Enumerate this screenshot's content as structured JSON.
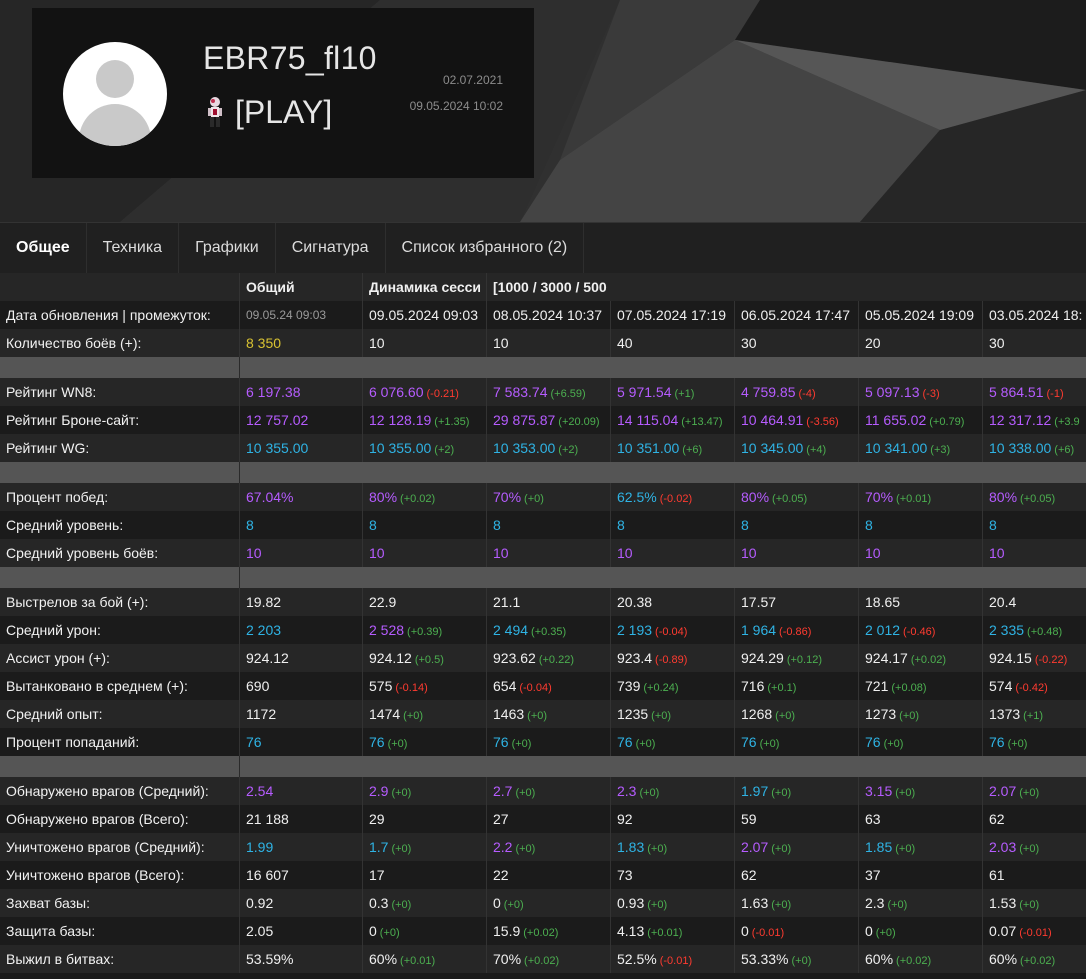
{
  "profile": {
    "username": "EBR75_fl10",
    "clan_tag": "[PLAY]",
    "registered_date": "02.07.2021",
    "last_battle": "09.05.2024 10:02"
  },
  "tabs": [
    {
      "label": "Общее",
      "active": true
    },
    {
      "label": "Техника",
      "active": false
    },
    {
      "label": "Графики",
      "active": false
    },
    {
      "label": "Сигнатура",
      "active": false
    },
    {
      "label": "Список избранного (2)",
      "active": false
    }
  ],
  "table": {
    "header": {
      "overall": "Общий",
      "dynamics": "Динамика сесси",
      "ranges": "[1000 / 3000 / 500"
    },
    "dates_label": "Дата обновления | промежуток:",
    "dates": [
      "09.05.24 09:03",
      "09.05.2024 09:03",
      "08.05.2024 10:37",
      "07.05.2024 17:19",
      "06.05.2024 17:47",
      "05.05.2024 19:09",
      "03.05.2024 18:"
    ],
    "rows": [
      {
        "label": "Количество боёв (+):",
        "cells": [
          [
            "8 350",
            "",
            "yellow"
          ],
          [
            "10",
            "",
            "white"
          ],
          [
            "10",
            "",
            "white"
          ],
          [
            "40",
            "",
            "white"
          ],
          [
            "30",
            "",
            "white"
          ],
          [
            "20",
            "",
            "white"
          ],
          [
            "30",
            "",
            "white"
          ]
        ]
      },
      {
        "sep": true
      },
      {
        "label": "Рейтинг WN8:",
        "cells": [
          [
            "6 197.38",
            "",
            "purple"
          ],
          [
            "6 076.60",
            "(-0.21)",
            "purple"
          ],
          [
            "7 583.74",
            "(+6.59)",
            "purple"
          ],
          [
            "5 971.54",
            "(+1)",
            "purple"
          ],
          [
            "4 759.85",
            "(-4)",
            "purple"
          ],
          [
            "5 097.13",
            "(-3)",
            "purple"
          ],
          [
            "5 864.51",
            "(-1)",
            "purple"
          ]
        ]
      },
      {
        "label": "Рейтинг Броне-сайт:",
        "cells": [
          [
            "12 757.02",
            "",
            "purple"
          ],
          [
            "12 128.19",
            "(+1.35)",
            "purple"
          ],
          [
            "29 875.87",
            "(+20.09)",
            "purple"
          ],
          [
            "14 115.04",
            "(+13.47)",
            "purple"
          ],
          [
            "10 464.91",
            "(-3.56)",
            "purple"
          ],
          [
            "11 655.02",
            "(+0.79)",
            "purple"
          ],
          [
            "12 317.12",
            "(+3.9",
            "purple"
          ]
        ]
      },
      {
        "label": "Рейтинг WG:",
        "cells": [
          [
            "10 355.00",
            "",
            "cyan"
          ],
          [
            "10 355.00",
            "(+2)",
            "cyan"
          ],
          [
            "10 353.00",
            "(+2)",
            "cyan"
          ],
          [
            "10 351.00",
            "(+6)",
            "cyan"
          ],
          [
            "10 345.00",
            "(+4)",
            "cyan"
          ],
          [
            "10 341.00",
            "(+3)",
            "cyan"
          ],
          [
            "10 338.00",
            "(+6)",
            "cyan"
          ]
        ]
      },
      {
        "sep": true
      },
      {
        "label": "Процент побед:",
        "cells": [
          [
            "67.04%",
            "",
            "purple"
          ],
          [
            "80%",
            "(+0.02)",
            "purple"
          ],
          [
            "70%",
            "(+0)",
            "purple"
          ],
          [
            "62.5%",
            "(-0.02)",
            "cyan"
          ],
          [
            "80%",
            "(+0.05)",
            "purple"
          ],
          [
            "70%",
            "(+0.01)",
            "purple"
          ],
          [
            "80%",
            "(+0.05)",
            "purple"
          ]
        ]
      },
      {
        "label": "Средний уровень:",
        "cells": [
          [
            "8",
            "",
            "cyan"
          ],
          [
            "8",
            "",
            "cyan"
          ],
          [
            "8",
            "",
            "cyan"
          ],
          [
            "8",
            "",
            "cyan"
          ],
          [
            "8",
            "",
            "cyan"
          ],
          [
            "8",
            "",
            "cyan"
          ],
          [
            "8",
            "",
            "cyan"
          ]
        ]
      },
      {
        "label": "Средний уровень боёв:",
        "cells": [
          [
            "10",
            "",
            "purple"
          ],
          [
            "10",
            "",
            "purple"
          ],
          [
            "10",
            "",
            "purple"
          ],
          [
            "10",
            "",
            "purple"
          ],
          [
            "10",
            "",
            "purple"
          ],
          [
            "10",
            "",
            "purple"
          ],
          [
            "10",
            "",
            "purple"
          ]
        ]
      },
      {
        "sep": true
      },
      {
        "label": "Выстрелов за бой (+):",
        "cells": [
          [
            "19.82",
            "",
            "white"
          ],
          [
            "22.9",
            "",
            "white"
          ],
          [
            "21.1",
            "",
            "white"
          ],
          [
            "20.38",
            "",
            "white"
          ],
          [
            "17.57",
            "",
            "white"
          ],
          [
            "18.65",
            "",
            "white"
          ],
          [
            "20.4",
            "",
            "white"
          ]
        ]
      },
      {
        "label": "Средний урон:",
        "cells": [
          [
            "2 203",
            "",
            "cyan"
          ],
          [
            "2 528",
            "(+0.39)",
            "purple"
          ],
          [
            "2 494",
            "(+0.35)",
            "cyan"
          ],
          [
            "2 193",
            "(-0.04)",
            "cyan"
          ],
          [
            "1 964",
            "(-0.86)",
            "cyan"
          ],
          [
            "2 012",
            "(-0.46)",
            "cyan"
          ],
          [
            "2 335",
            "(+0.48)",
            "cyan"
          ]
        ]
      },
      {
        "label": "Ассист урон (+):",
        "cells": [
          [
            "924.12",
            "",
            "white"
          ],
          [
            "924.12",
            "(+0.5)",
            "white"
          ],
          [
            "923.62",
            "(+0.22)",
            "white"
          ],
          [
            "923.4",
            "(-0.89)",
            "white"
          ],
          [
            "924.29",
            "(+0.12)",
            "white"
          ],
          [
            "924.17",
            "(+0.02)",
            "white"
          ],
          [
            "924.15",
            "(-0.22)",
            "white"
          ]
        ]
      },
      {
        "label": "Вытанковано в среднем (+):",
        "cells": [
          [
            "690",
            "",
            "white"
          ],
          [
            "575",
            "(-0.14)",
            "white"
          ],
          [
            "654",
            "(-0.04)",
            "white"
          ],
          [
            "739",
            "(+0.24)",
            "white"
          ],
          [
            "716",
            "(+0.1)",
            "white"
          ],
          [
            "721",
            "(+0.08)",
            "white"
          ],
          [
            "574",
            "(-0.42)",
            "white"
          ]
        ]
      },
      {
        "label": "Средний опыт:",
        "cells": [
          [
            "1172",
            "",
            "white"
          ],
          [
            "1474",
            "(+0)",
            "white"
          ],
          [
            "1463",
            "(+0)",
            "white"
          ],
          [
            "1235",
            "(+0)",
            "white"
          ],
          [
            "1268",
            "(+0)",
            "white"
          ],
          [
            "1273",
            "(+0)",
            "white"
          ],
          [
            "1373",
            "(+1)",
            "white"
          ]
        ]
      },
      {
        "label": "Процент попаданий:",
        "cells": [
          [
            "76",
            "",
            "cyan"
          ],
          [
            "76",
            "(+0)",
            "cyan"
          ],
          [
            "76",
            "(+0)",
            "cyan"
          ],
          [
            "76",
            "(+0)",
            "cyan"
          ],
          [
            "76",
            "(+0)",
            "cyan"
          ],
          [
            "76",
            "(+0)",
            "cyan"
          ],
          [
            "76",
            "(+0)",
            "cyan"
          ]
        ]
      },
      {
        "sep": true
      },
      {
        "label": "Обнаружено врагов (Средний):",
        "cells": [
          [
            "2.54",
            "",
            "purple"
          ],
          [
            "2.9",
            "(+0)",
            "purple"
          ],
          [
            "2.7",
            "(+0)",
            "purple"
          ],
          [
            "2.3",
            "(+0)",
            "purple"
          ],
          [
            "1.97",
            "(+0)",
            "cyan"
          ],
          [
            "3.15",
            "(+0)",
            "purple"
          ],
          [
            "2.07",
            "(+0)",
            "purple"
          ]
        ]
      },
      {
        "label": "Обнаружено врагов (Всего):",
        "cells": [
          [
            "21 188",
            "",
            "white"
          ],
          [
            "29",
            "",
            "white"
          ],
          [
            "27",
            "",
            "white"
          ],
          [
            "92",
            "",
            "white"
          ],
          [
            "59",
            "",
            "white"
          ],
          [
            "63",
            "",
            "white"
          ],
          [
            "62",
            "",
            "white"
          ]
        ]
      },
      {
        "label": "Уничтожено врагов (Средний):",
        "cells": [
          [
            "1.99",
            "",
            "cyan"
          ],
          [
            "1.7",
            "(+0)",
            "cyan"
          ],
          [
            "2.2",
            "(+0)",
            "purple"
          ],
          [
            "1.83",
            "(+0)",
            "cyan"
          ],
          [
            "2.07",
            "(+0)",
            "purple"
          ],
          [
            "1.85",
            "(+0)",
            "cyan"
          ],
          [
            "2.03",
            "(+0)",
            "purple"
          ]
        ]
      },
      {
        "label": "Уничтожено врагов (Всего):",
        "cells": [
          [
            "16 607",
            "",
            "white"
          ],
          [
            "17",
            "",
            "white"
          ],
          [
            "22",
            "",
            "white"
          ],
          [
            "73",
            "",
            "white"
          ],
          [
            "62",
            "",
            "white"
          ],
          [
            "37",
            "",
            "white"
          ],
          [
            "61",
            "",
            "white"
          ]
        ]
      },
      {
        "label": "Захват базы:",
        "cells": [
          [
            "0.92",
            "",
            "white"
          ],
          [
            "0.3",
            "(+0)",
            "white"
          ],
          [
            "0",
            "(+0)",
            "white"
          ],
          [
            "0.93",
            "(+0)",
            "white"
          ],
          [
            "1.63",
            "(+0)",
            "white"
          ],
          [
            "2.3",
            "(+0)",
            "white"
          ],
          [
            "1.53",
            "(+0)",
            "white"
          ]
        ]
      },
      {
        "label": "Защита базы:",
        "cells": [
          [
            "2.05",
            "",
            "white"
          ],
          [
            "0",
            "(+0)",
            "white"
          ],
          [
            "15.9",
            "(+0.02)",
            "white"
          ],
          [
            "4.13",
            "(+0.01)",
            "white"
          ],
          [
            "0",
            "(-0.01)",
            "white"
          ],
          [
            "0",
            "(+0)",
            "white"
          ],
          [
            "0.07",
            "(-0.01)",
            "white"
          ]
        ]
      },
      {
        "label": "Выжил в битвах:",
        "cells": [
          [
            "53.59%",
            "",
            "white"
          ],
          [
            "60%",
            "(+0.01)",
            "white"
          ],
          [
            "70%",
            "(+0.02)",
            "white"
          ],
          [
            "52.5%",
            "(-0.01)",
            "white"
          ],
          [
            "53.33%",
            "(+0)",
            "white"
          ],
          [
            "60%",
            "(+0.02)",
            "white"
          ],
          [
            "60%",
            "(+0.02)",
            "white"
          ]
        ]
      }
    ]
  }
}
